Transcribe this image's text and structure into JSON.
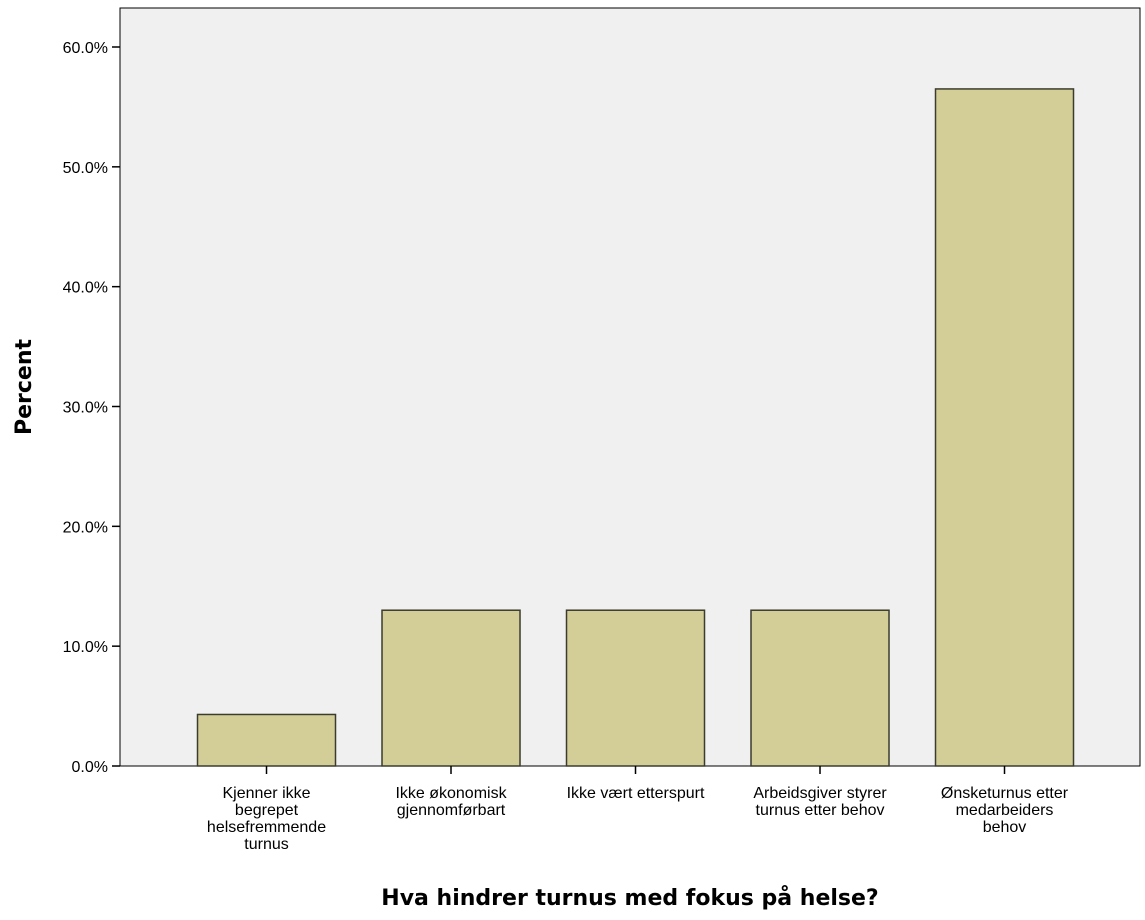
{
  "chart_data": {
    "type": "bar",
    "xlabel": "Hva hindrer turnus med fokus på helse?",
    "ylabel": "Percent",
    "ylim": [
      0,
      63
    ],
    "yticks": [
      {
        "value": 0,
        "label": "0.0%"
      },
      {
        "value": 10,
        "label": "10.0%"
      },
      {
        "value": 20,
        "label": "20.0%"
      },
      {
        "value": 30,
        "label": "30.0%"
      },
      {
        "value": 40,
        "label": "40.0%"
      },
      {
        "value": 50,
        "label": "50.0%"
      },
      {
        "value": 60,
        "label": "60.0%"
      }
    ],
    "categories": [
      {
        "label": "Kjenner ikke begrepet helsefremmende turnus",
        "lines": [
          "Kjenner ikke",
          "begrepet",
          "helsefremmende",
          "turnus"
        ]
      },
      {
        "label": "Ikke økonomisk gjennomførbart",
        "lines": [
          "Ikke økonomisk",
          "gjennomførbart"
        ]
      },
      {
        "label": "Ikke vært etterspurt",
        "lines": [
          "Ikke vært etterspurt"
        ]
      },
      {
        "label": "Arbeidsgiver styrer turnus etter behov",
        "lines": [
          "Arbeidsgiver styrer",
          "turnus etter behov"
        ]
      },
      {
        "label": "Ønsketurnus etter medarbeiders behov",
        "lines": [
          "Ønsketurnus etter",
          "medarbeiders",
          "behov"
        ]
      }
    ],
    "values": [
      4.3,
      13.0,
      13.0,
      13.0,
      56.5
    ],
    "grid": false,
    "legend": "none",
    "colors": {
      "bar_fill": "#d3ce98",
      "bar_stroke": "#3b3b2e",
      "plot_background": "#f0f0f0",
      "axis": "#000000"
    }
  }
}
